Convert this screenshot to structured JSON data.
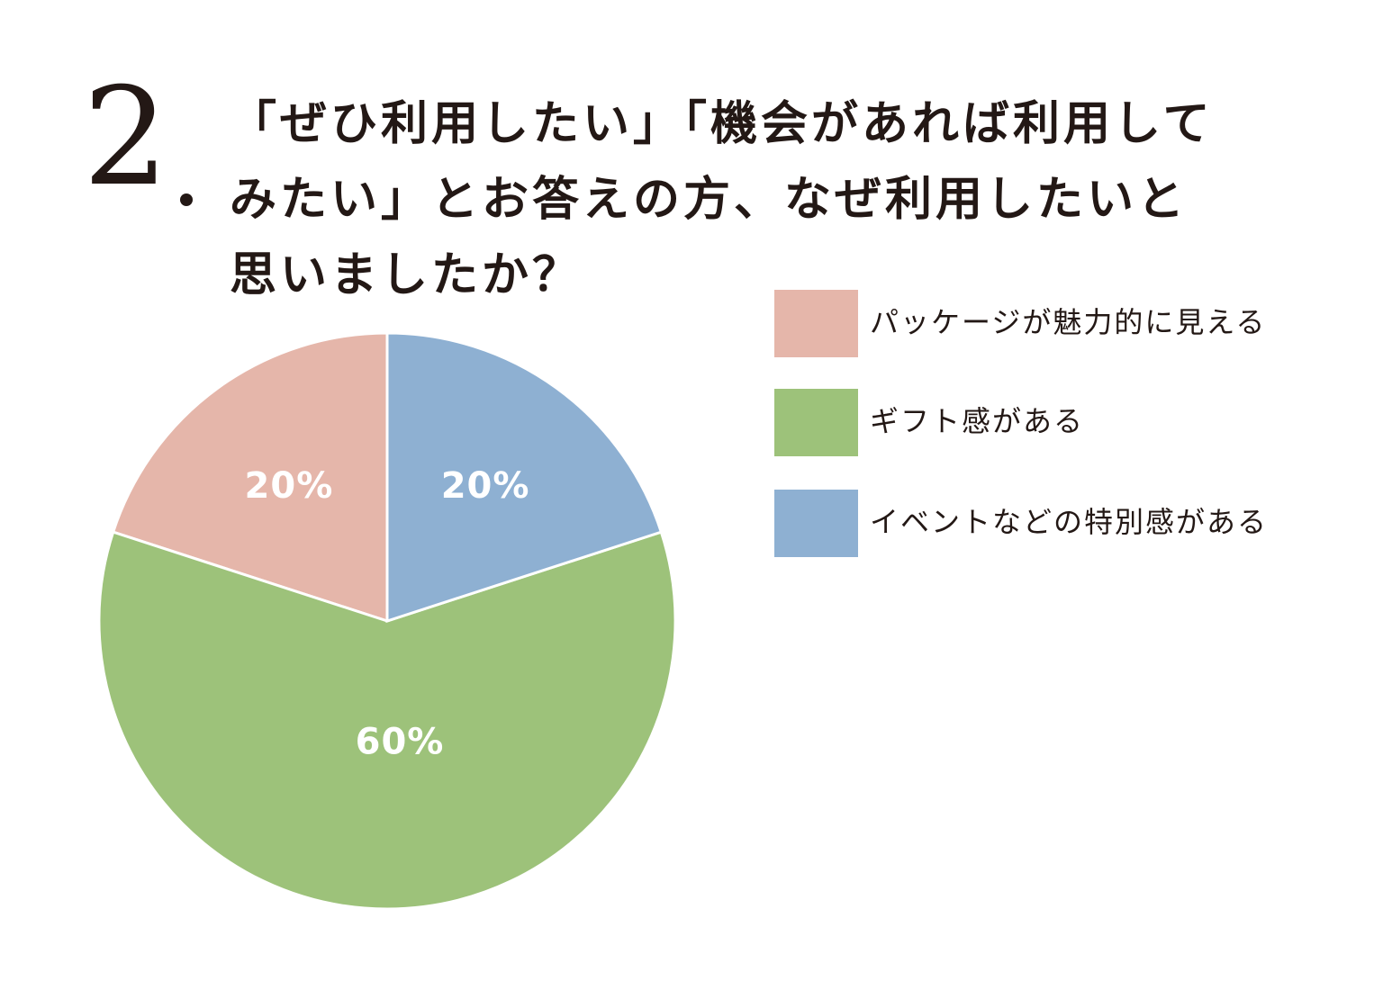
{
  "question": {
    "number": "2",
    "title_lines": [
      "「ぜひ利用したい」「機会があれば利用して",
      "みたい」とお答えの方、なぜ利用したいと",
      "思いましたか？"
    ]
  },
  "chart_data": {
    "type": "pie",
    "categories": [
      "パッケージが魅力的に見える",
      "ギフト感がある",
      "イベントなどの特別感がある"
    ],
    "values": [
      20,
      60,
      20
    ],
    "labels": [
      "20%",
      "60%",
      "20%"
    ],
    "colors": [
      "#e5b6aa",
      "#9dc27a",
      "#8eb0d2"
    ],
    "legend_placement": "right",
    "start": "top, counter-clockwise for first slice"
  }
}
